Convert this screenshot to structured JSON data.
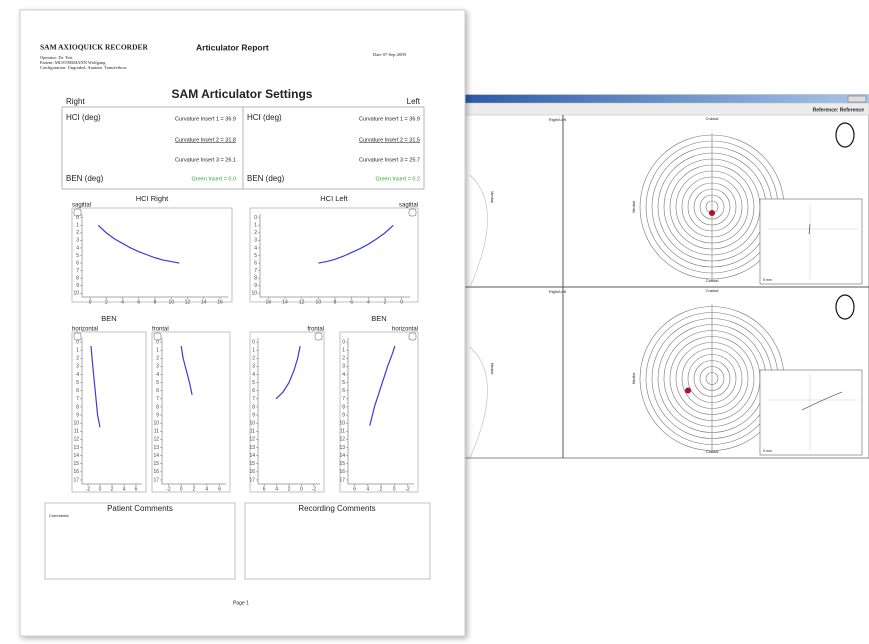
{
  "report": {
    "header": {
      "brand": "SAM AXIOQUICK RECORDER",
      "title": "Articulator Report",
      "date": "Date 07-Sep-2009",
      "operator": "Operator: Dr. Test",
      "patient": "Patient: MUSTERMANN Wolfgang",
      "configuration": "Configuration: Ungraded, Anatom. Transferbow"
    },
    "settings": {
      "title": "SAM Articulator Settings",
      "right_label": "Right",
      "left_label": "Left",
      "right": {
        "hci_label": "HCI (deg)",
        "inserts": [
          "Curvature Insert 1 = 36.9",
          "Curvature Insert 2 = 31.8",
          "Curvature Insert 3 = 26.1"
        ],
        "ben_label": "BEN (deg)",
        "green_insert": "Green Insert = 0.0"
      },
      "left": {
        "hci_label": "HCI (deg)",
        "inserts": [
          "Curvature Insert 1 = 36.9",
          "Curvature Insert 2 = 31.5",
          "Curvature Insert 3 = 25.7"
        ],
        "ben_label": "BEN (deg)",
        "green_insert": "Green Insert = 0.2"
      }
    },
    "curve_color": "#3b3bdc",
    "plots": [
      {
        "title": "HCI Right",
        "view": "sagittal",
        "xlim": [
          -1,
          17
        ],
        "ylim": [
          -0.5,
          10.5
        ],
        "xticks": [
          0,
          2,
          4,
          6,
          8,
          10,
          12,
          14,
          16
        ],
        "yticks": [
          0,
          1,
          2,
          3,
          4,
          5,
          6,
          7,
          8,
          9,
          10
        ],
        "curve": {
          "x": [
            1,
            2,
            3,
            4,
            5,
            6,
            7,
            8,
            9,
            10,
            11
          ],
          "y": [
            1,
            2,
            2.8,
            3.4,
            4,
            4.5,
            4.9,
            5.3,
            5.6,
            5.8,
            6
          ]
        }
      },
      {
        "title": "HCI Left",
        "view": "sagittal",
        "xlim": [
          17,
          -1
        ],
        "ylim": [
          -0.5,
          10.5
        ],
        "xticks": [
          16,
          14,
          12,
          10,
          8,
          6,
          4,
          2,
          0
        ],
        "yticks": [
          0,
          1,
          2,
          3,
          4,
          5,
          6,
          7,
          8,
          9,
          10
        ],
        "curve": {
          "x": [
            10,
            9,
            8,
            7,
            6,
            5,
            4,
            3,
            2,
            1
          ],
          "y": [
            6,
            5.8,
            5.5,
            5.1,
            4.6,
            4.1,
            3.5,
            2.8,
            2,
            1
          ]
        }
      },
      {
        "title": "BEN",
        "view": "horizontal",
        "xlim": [
          -3,
          7
        ],
        "ylim": [
          -0.5,
          17.5
        ],
        "xticks": [
          -2,
          0,
          2,
          4,
          6
        ],
        "yticks": [
          0,
          1,
          2,
          3,
          4,
          5,
          6,
          7,
          8,
          9,
          10,
          11,
          12,
          13,
          14,
          15,
          16,
          17
        ],
        "curve": {
          "x": [
            -1.5,
            -1.2,
            -0.8,
            -0.4,
            0
          ],
          "y": [
            0.5,
            3,
            6,
            9,
            10.5
          ]
        }
      },
      {
        "view": "frontal",
        "xlim": [
          -3,
          7
        ],
        "ylim": [
          -0.5,
          17.5
        ],
        "xticks": [
          -2,
          0,
          2,
          4,
          6
        ],
        "yticks": [
          0,
          1,
          2,
          3,
          4,
          5,
          6,
          7,
          8,
          9,
          10,
          11,
          12,
          13,
          14,
          15,
          16,
          17
        ],
        "curve": {
          "x": [
            0,
            0.3,
            0.8,
            1.3,
            1.7
          ],
          "y": [
            0.5,
            2,
            3.5,
            5,
            6.5
          ]
        }
      },
      {
        "view": "frontal",
        "xlim": [
          7,
          -3
        ],
        "ylim": [
          -0.5,
          17.5
        ],
        "xticks": [
          6,
          4,
          2,
          0,
          -2
        ],
        "yticks": [
          0,
          1,
          2,
          3,
          4,
          5,
          6,
          7,
          8,
          9,
          10,
          11,
          12,
          13,
          14,
          15,
          16,
          17
        ],
        "curve": {
          "x": [
            0.2,
            0.6,
            1.2,
            2,
            3,
            4.1
          ],
          "y": [
            0.5,
            2,
            3.5,
            5,
            6.2,
            7
          ]
        }
      },
      {
        "title": "BEN",
        "view": "horizontal",
        "xlim": [
          7,
          -3
        ],
        "ylim": [
          -0.5,
          17.5
        ],
        "xticks": [
          6,
          4,
          2,
          0,
          -2
        ],
        "yticks": [
          0,
          1,
          2,
          3,
          4,
          5,
          6,
          7,
          8,
          9,
          10,
          11,
          12,
          13,
          14,
          15,
          16,
          17
        ],
        "curve": {
          "x": [
            -0.1,
            0.3,
            1,
            2,
            3,
            3.7
          ],
          "y": [
            0.5,
            1.5,
            3,
            5.5,
            8,
            10.3
          ]
        }
      }
    ],
    "comments": {
      "patient_title": "Patient Comments",
      "patient_label": "Comments:",
      "recording_title": "Recording Comments"
    },
    "footer": "Page 1"
  },
  "window": {
    "title": "Reference: Reference",
    "top": {
      "corner_label": "Right/Left",
      "top_label": "Cranial",
      "bottom_label": "Caudal",
      "side_label": "Medial",
      "scale": "5 mm"
    },
    "bottom": {
      "corner_label": "Right/Left",
      "top_label": "Cranial",
      "bottom_label": "Caudal",
      "side_label": "Medial",
      "scale": "5 mm"
    }
  }
}
